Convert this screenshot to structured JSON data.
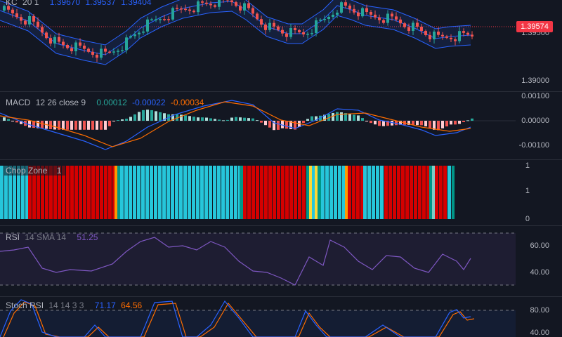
{
  "colors": {
    "background": "#131722",
    "bull": "#26a69a",
    "bear": "#ef5350",
    "kc_band": "#2962ff",
    "macd_line": "#2962ff",
    "signal_line": "#ff6d00",
    "rsi_line": "#7e57c2",
    "stoch_k": "#2962ff",
    "stoch_d": "#ff6d00",
    "chop_cyan": "#26c6da",
    "chop_red": "#d50000",
    "chop_teal": "#009688",
    "chop_orange": "#ff9800",
    "chop_yellow": "#fdd835",
    "chop_pale": "#80cbc4"
  },
  "main": {
    "legend": {
      "name": "KC",
      "params": "20 1",
      "v1": "1.39670",
      "v2": "1.39537",
      "v3": "1.39404"
    },
    "ticks": [
      "1.39500",
      "1.39000"
    ],
    "price_tag": "1.39574"
  },
  "macd": {
    "legend": {
      "name": "MACD",
      "params": "12 26 close 9",
      "v1": "0.00012",
      "v2": "-0.00022",
      "v3": "-0.00034"
    },
    "ticks": [
      "0.00100",
      "0.00000",
      "-0.00100"
    ]
  },
  "chop": {
    "legend": {
      "name": "Chop Zone",
      "value": "1"
    },
    "ticks": [
      "1",
      "1",
      "0"
    ]
  },
  "rsi": {
    "legend": {
      "name": "RSI",
      "params": "14 SMA 14",
      "value": "51.25"
    },
    "ticks": [
      "60.00",
      "40.00"
    ]
  },
  "stoch": {
    "legend": {
      "name": "Stoch RSI",
      "params": "14 14 3 3",
      "k": "71.17",
      "d": "64.56"
    },
    "ticks": [
      "80.00",
      "40.00"
    ]
  }
}
